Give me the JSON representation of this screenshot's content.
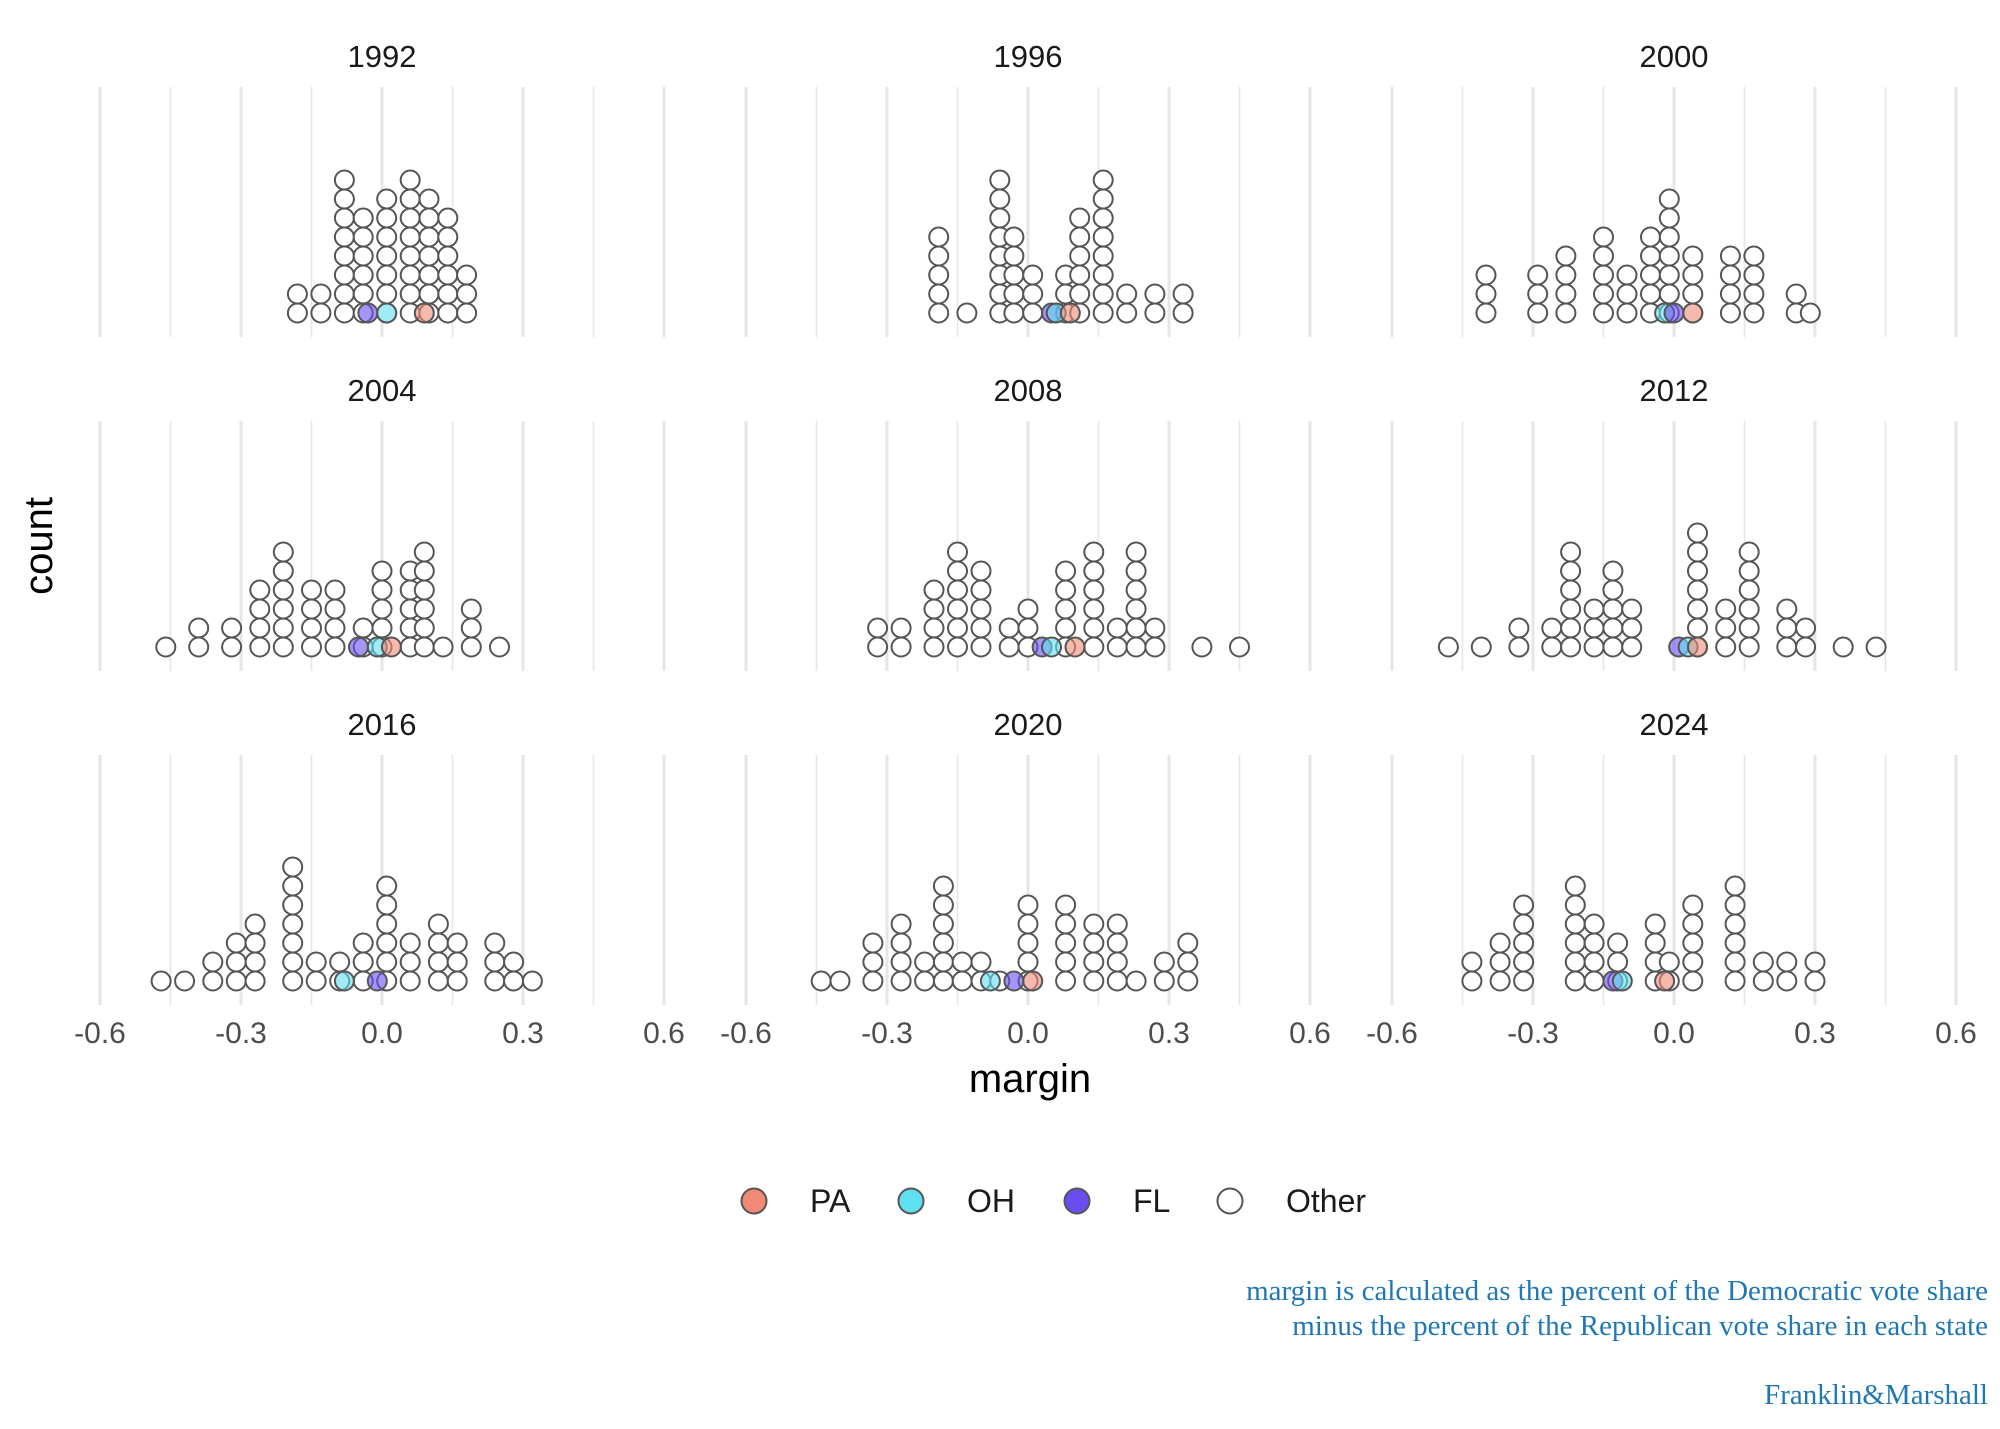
{
  "chart_data": {
    "type": "scatter",
    "subtype": "dotplot",
    "xlabel": "margin",
    "ylabel": "count",
    "xlim": [
      -0.6,
      0.6
    ],
    "xticks": [
      -0.6,
      -0.3,
      0.0,
      0.3,
      0.6
    ],
    "xtick_labels": [
      "-0.6",
      "-0.3",
      "0.0",
      "0.3",
      "0.6"
    ],
    "grid": true,
    "legend_position": "bottom",
    "legend": [
      {
        "key": "PA",
        "label": "PA",
        "color": "#f08a76"
      },
      {
        "key": "OH",
        "label": "OH",
        "color": "#5fe0f0"
      },
      {
        "key": "FL",
        "label": "FL",
        "color": "#6a4cf0"
      },
      {
        "key": "Other",
        "label": "Other",
        "color": "#ffffff"
      }
    ],
    "panels": [
      {
        "title": "1992",
        "stacks": [
          [
            -0.18,
            2
          ],
          [
            -0.13,
            2
          ],
          [
            -0.08,
            8
          ],
          [
            -0.04,
            6
          ],
          [
            0.01,
            7
          ],
          [
            0.06,
            8
          ],
          [
            0.1,
            7
          ],
          [
            0.14,
            6
          ],
          [
            0.18,
            3
          ]
        ],
        "highlights": [
          {
            "state": "FL",
            "x": -0.03
          },
          {
            "state": "OH",
            "x": 0.01
          },
          {
            "state": "PA",
            "x": 0.09
          }
        ]
      },
      {
        "title": "1996",
        "stacks": [
          [
            -0.19,
            5
          ],
          [
            -0.13,
            1
          ],
          [
            -0.06,
            8
          ],
          [
            -0.03,
            5
          ],
          [
            0.01,
            3
          ],
          [
            0.08,
            3
          ],
          [
            0.11,
            6
          ],
          [
            0.16,
            8
          ],
          [
            0.21,
            2
          ],
          [
            0.27,
            2
          ],
          [
            0.33,
            2
          ]
        ],
        "highlights": [
          {
            "state": "FL",
            "x": 0.05
          },
          {
            "state": "OH",
            "x": 0.06
          },
          {
            "state": "PA",
            "x": 0.09
          }
        ]
      },
      {
        "title": "2000",
        "stacks": [
          [
            -0.4,
            3
          ],
          [
            -0.29,
            3
          ],
          [
            -0.23,
            4
          ],
          [
            -0.15,
            5
          ],
          [
            -0.1,
            3
          ],
          [
            -0.05,
            5
          ],
          [
            -0.01,
            7
          ],
          [
            0.04,
            4
          ],
          [
            0.12,
            4
          ],
          [
            0.17,
            4
          ],
          [
            0.26,
            2
          ],
          [
            0.29,
            1
          ]
        ],
        "highlights": [
          {
            "state": "OH",
            "x": -0.02
          },
          {
            "state": "FL",
            "x": 0.0
          },
          {
            "state": "PA",
            "x": 0.04
          }
        ]
      },
      {
        "title": "2004",
        "stacks": [
          [
            -0.46,
            1
          ],
          [
            -0.39,
            2
          ],
          [
            -0.32,
            2
          ],
          [
            -0.26,
            4
          ],
          [
            -0.21,
            6
          ],
          [
            -0.15,
            4
          ],
          [
            -0.1,
            4
          ],
          [
            -0.04,
            2
          ],
          [
            0.0,
            5
          ],
          [
            0.06,
            5
          ],
          [
            0.09,
            6
          ],
          [
            0.13,
            1
          ],
          [
            0.19,
            3
          ],
          [
            0.25,
            1
          ]
        ],
        "highlights": [
          {
            "state": "FL",
            "x": -0.05
          },
          {
            "state": "OH",
            "x": -0.01
          },
          {
            "state": "PA",
            "x": 0.02
          }
        ]
      },
      {
        "title": "2008",
        "stacks": [
          [
            -0.32,
            2
          ],
          [
            -0.27,
            2
          ],
          [
            -0.2,
            4
          ],
          [
            -0.15,
            6
          ],
          [
            -0.1,
            5
          ],
          [
            -0.04,
            2
          ],
          [
            0.0,
            3
          ],
          [
            0.08,
            5
          ],
          [
            0.14,
            6
          ],
          [
            0.19,
            2
          ],
          [
            0.23,
            6
          ],
          [
            0.27,
            2
          ],
          [
            0.37,
            1
          ],
          [
            0.45,
            1
          ]
        ],
        "highlights": [
          {
            "state": "FL",
            "x": 0.03
          },
          {
            "state": "OH",
            "x": 0.05
          },
          {
            "state": "PA",
            "x": 0.1
          }
        ]
      },
      {
        "title": "2012",
        "stacks": [
          [
            -0.48,
            1
          ],
          [
            -0.41,
            1
          ],
          [
            -0.33,
            2
          ],
          [
            -0.26,
            2
          ],
          [
            -0.22,
            6
          ],
          [
            -0.17,
            3
          ],
          [
            -0.13,
            5
          ],
          [
            -0.09,
            3
          ],
          [
            0.05,
            7
          ],
          [
            0.11,
            3
          ],
          [
            0.16,
            6
          ],
          [
            0.24,
            3
          ],
          [
            0.28,
            2
          ],
          [
            0.36,
            1
          ],
          [
            0.43,
            1
          ]
        ],
        "highlights": [
          {
            "state": "FL",
            "x": 0.01
          },
          {
            "state": "OH",
            "x": 0.03
          },
          {
            "state": "PA",
            "x": 0.05
          }
        ]
      },
      {
        "title": "2016",
        "stacks": [
          [
            -0.47,
            1
          ],
          [
            -0.42,
            1
          ],
          [
            -0.36,
            2
          ],
          [
            -0.31,
            3
          ],
          [
            -0.27,
            4
          ],
          [
            -0.19,
            7
          ],
          [
            -0.14,
            2
          ],
          [
            -0.09,
            2
          ],
          [
            -0.04,
            3
          ],
          [
            0.01,
            6
          ],
          [
            0.06,
            3
          ],
          [
            0.12,
            4
          ],
          [
            0.16,
            3
          ],
          [
            0.24,
            3
          ],
          [
            0.28,
            2
          ],
          [
            0.32,
            1
          ]
        ],
        "highlights": [
          {
            "state": "OH",
            "x": -0.08
          },
          {
            "state": "FL",
            "x": -0.01
          }
        ]
      },
      {
        "title": "2020",
        "stacks": [
          [
            -0.44,
            1
          ],
          [
            -0.4,
            1
          ],
          [
            -0.33,
            3
          ],
          [
            -0.27,
            4
          ],
          [
            -0.22,
            2
          ],
          [
            -0.18,
            6
          ],
          [
            -0.14,
            2
          ],
          [
            -0.1,
            2
          ],
          [
            -0.06,
            1
          ],
          [
            0.0,
            5
          ],
          [
            0.08,
            5
          ],
          [
            0.14,
            4
          ],
          [
            0.19,
            4
          ],
          [
            0.23,
            1
          ],
          [
            0.29,
            2
          ],
          [
            0.34,
            3
          ]
        ],
        "highlights": [
          {
            "state": "OH",
            "x": -0.08
          },
          {
            "state": "FL",
            "x": -0.03
          },
          {
            "state": "PA",
            "x": 0.01
          }
        ]
      },
      {
        "title": "2024",
        "stacks": [
          [
            -0.43,
            2
          ],
          [
            -0.37,
            3
          ],
          [
            -0.32,
            5
          ],
          [
            -0.21,
            6
          ],
          [
            -0.17,
            4
          ],
          [
            -0.12,
            3
          ],
          [
            -0.04,
            4
          ],
          [
            -0.01,
            2
          ],
          [
            0.04,
            5
          ],
          [
            0.13,
            6
          ],
          [
            0.19,
            2
          ],
          [
            0.24,
            2
          ],
          [
            0.3,
            2
          ]
        ],
        "highlights": [
          {
            "state": "FL",
            "x": -0.13
          },
          {
            "state": "OH",
            "x": -0.11
          },
          {
            "state": "PA",
            "x": -0.02
          }
        ]
      }
    ],
    "caption_lines": [
      "margin is calculated as the percent of the Democratic vote share",
      "minus the percent of the Republican vote share in each state"
    ],
    "credit": "Franklin&Marshall"
  }
}
